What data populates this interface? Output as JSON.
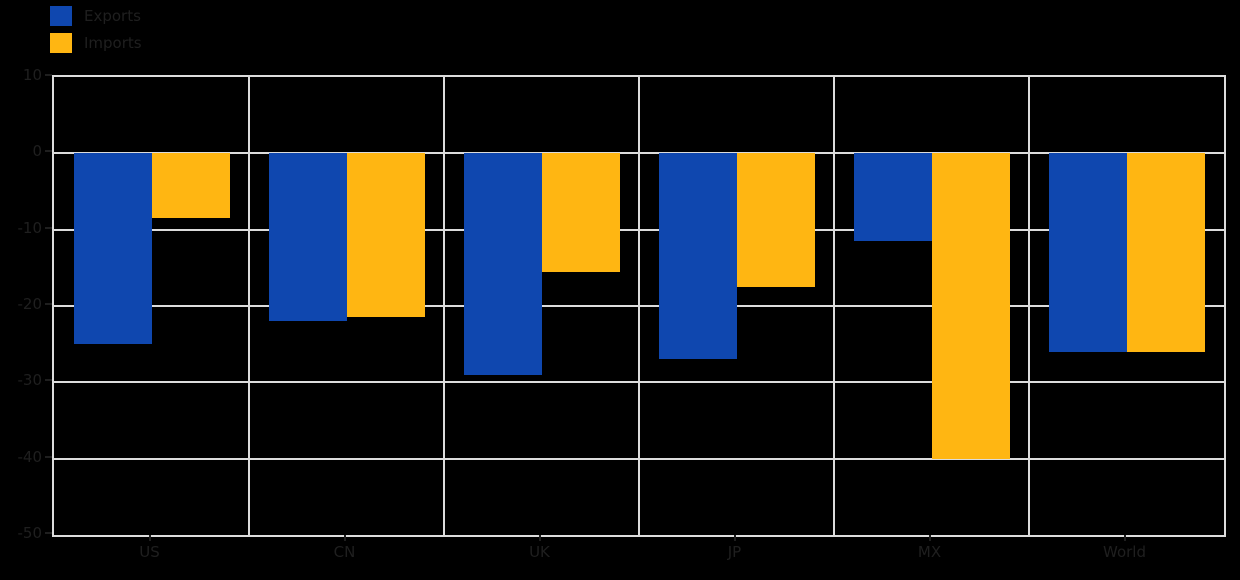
{
  "chart_data": {
    "type": "bar",
    "title": "",
    "xlabel": "",
    "ylabel": "",
    "categories": [
      "US",
      "CN",
      "UK",
      "JP",
      "MX",
      "World"
    ],
    "series": [
      {
        "name": "Exports",
        "color": "#0F47AF",
        "values": [
          -25,
          -22,
          -29,
          -27,
          -11.5,
          -26
        ]
      },
      {
        "name": "Imports",
        "color": "#FFB612",
        "values": [
          -8.5,
          -21.5,
          -15.5,
          -17.5,
          -40,
          -26
        ]
      }
    ],
    "ylim": [
      -50,
      10
    ],
    "yticks": [
      10,
      0,
      -10,
      -20,
      -30,
      -40,
      -50
    ],
    "ytick_labels": [
      "10",
      "0",
      "-10",
      "-20",
      "-30",
      "-40",
      "-50"
    ],
    "grid": true,
    "legend_position": "upper-left-outside"
  },
  "colors": {
    "background": "#000000",
    "grid": "#DCDCDC",
    "text": "#1F1F1F"
  }
}
